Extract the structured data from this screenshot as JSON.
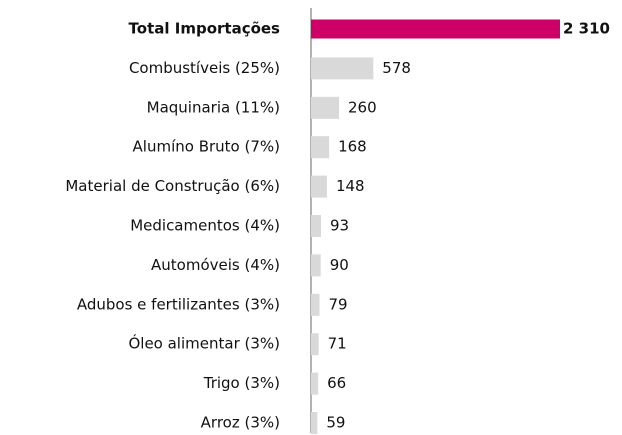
{
  "chart_data": {
    "type": "bar",
    "orientation": "horizontal",
    "categories": [
      "Total Importações",
      "Combustíveis (25%)",
      "Maquinaria (11%)",
      "Alumíno Bruto (7%)",
      "Material de Construção (6%)",
      "Medicamentos (4%)",
      "Automóveis (4%)",
      "Adubos e fertilizantes (3%)",
      "Óleo alimentar (3%)",
      "Trigo (3%)",
      "Arroz (3%)"
    ],
    "values": [
      2310,
      578,
      260,
      168,
      148,
      93,
      90,
      79,
      71,
      66,
      59
    ],
    "value_labels": [
      "2 310",
      "578",
      "260",
      "168",
      "148",
      "93",
      "90",
      "79",
      "71",
      "66",
      "59"
    ],
    "colors": [
      "#cc0066",
      "#d9d9d9",
      "#d9d9d9",
      "#d9d9d9",
      "#d9d9d9",
      "#d9d9d9",
      "#d9d9d9",
      "#d9d9d9",
      "#d9d9d9",
      "#d9d9d9",
      "#d9d9d9"
    ]
  }
}
